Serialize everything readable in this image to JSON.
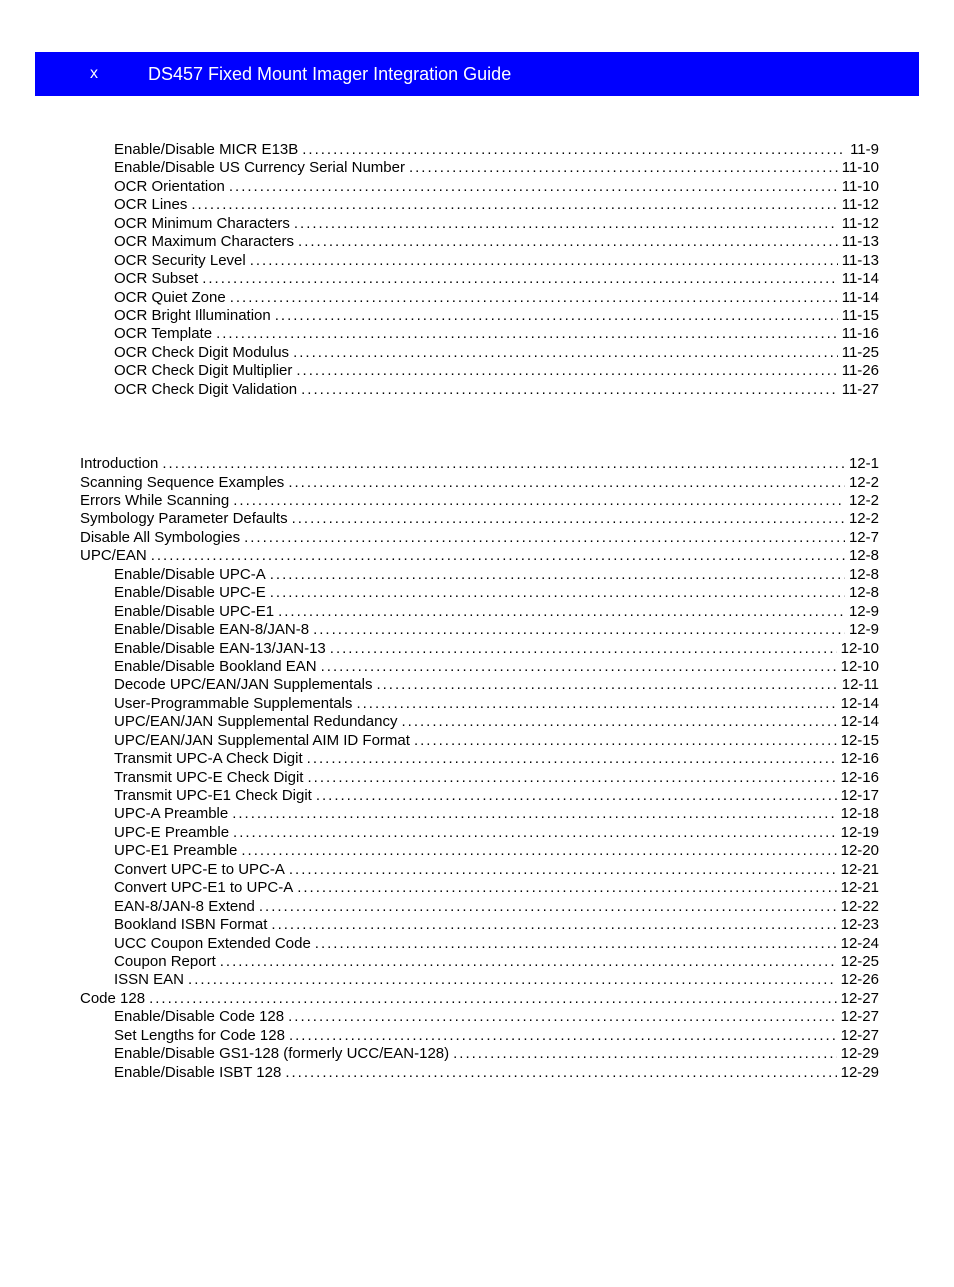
{
  "header": {
    "pageNumber": "x",
    "title": "DS457 Fixed Mount Imager Integration Guide"
  },
  "toc": {
    "section1": [
      {
        "label": "Enable/Disable MICR E13B",
        "page": "11-9",
        "indent": 1
      },
      {
        "label": "Enable/Disable US Currency Serial Number",
        "page": "11-10",
        "indent": 1
      },
      {
        "label": "OCR Orientation",
        "page": "11-10",
        "indent": 1
      },
      {
        "label": "OCR Lines",
        "page": "11-12",
        "indent": 1
      },
      {
        "label": "OCR Minimum Characters",
        "page": "11-12",
        "indent": 1
      },
      {
        "label": "OCR Maximum Characters",
        "page": "11-13",
        "indent": 1
      },
      {
        "label": "OCR Security Level",
        "page": "11-13",
        "indent": 1
      },
      {
        "label": "OCR Subset",
        "page": "11-14",
        "indent": 1
      },
      {
        "label": "OCR Quiet Zone",
        "page": "11-14",
        "indent": 1
      },
      {
        "label": "OCR Bright Illumination",
        "page": "11-15",
        "indent": 1
      },
      {
        "label": "OCR Template",
        "page": "11-16",
        "indent": 1
      },
      {
        "label": "OCR Check Digit Modulus",
        "page": "11-25",
        "indent": 1
      },
      {
        "label": "OCR Check Digit Multiplier",
        "page": "11-26",
        "indent": 1
      },
      {
        "label": "OCR Check Digit Validation",
        "page": "11-27",
        "indent": 1
      }
    ],
    "section2": [
      {
        "label": "Introduction",
        "page": "12-1",
        "indent": 0
      },
      {
        "label": "Scanning Sequence Examples",
        "page": "12-2",
        "indent": 0
      },
      {
        "label": "Errors While Scanning",
        "page": "12-2",
        "indent": 0
      },
      {
        "label": "Symbology Parameter Defaults",
        "page": "12-2",
        "indent": 0
      },
      {
        "label": "Disable All Symbologies",
        "page": "12-7",
        "indent": 0
      },
      {
        "label": "UPC/EAN",
        "page": "12-8",
        "indent": 0
      },
      {
        "label": "Enable/Disable UPC-A",
        "page": "12-8",
        "indent": 1
      },
      {
        "label": "Enable/Disable UPC-E",
        "page": "12-8",
        "indent": 1
      },
      {
        "label": "Enable/Disable UPC-E1",
        "page": "12-9",
        "indent": 1
      },
      {
        "label": "Enable/Disable EAN-8/JAN-8",
        "page": "12-9",
        "indent": 1
      },
      {
        "label": "Enable/Disable EAN-13/JAN-13",
        "page": "12-10",
        "indent": 1
      },
      {
        "label": "Enable/Disable Bookland EAN",
        "page": "12-10",
        "indent": 1
      },
      {
        "label": "Decode UPC/EAN/JAN Supplementals",
        "page": "12-11",
        "indent": 1
      },
      {
        "label": "User-Programmable Supplementals",
        "page": "12-14",
        "indent": 1
      },
      {
        "label": "UPC/EAN/JAN Supplemental Redundancy",
        "page": "12-14",
        "indent": 1
      },
      {
        "label": "UPC/EAN/JAN Supplemental AIM ID Format",
        "page": "12-15",
        "indent": 1
      },
      {
        "label": "Transmit UPC-A Check Digit",
        "page": "12-16",
        "indent": 1
      },
      {
        "label": "Transmit UPC-E Check Digit",
        "page": "12-16",
        "indent": 1
      },
      {
        "label": "Transmit UPC-E1 Check Digit",
        "page": "12-17",
        "indent": 1
      },
      {
        "label": "UPC-A Preamble",
        "page": "12-18",
        "indent": 1
      },
      {
        "label": "UPC-E Preamble",
        "page": "12-19",
        "indent": 1
      },
      {
        "label": "UPC-E1 Preamble",
        "page": "12-20",
        "indent": 1
      },
      {
        "label": "Convert UPC-E to UPC-A",
        "page": "12-21",
        "indent": 1
      },
      {
        "label": "Convert UPC-E1 to UPC-A",
        "page": "12-21",
        "indent": 1
      },
      {
        "label": "EAN-8/JAN-8 Extend",
        "page": "12-22",
        "indent": 1
      },
      {
        "label": "Bookland ISBN Format",
        "page": "12-23",
        "indent": 1
      },
      {
        "label": "UCC Coupon Extended Code",
        "page": "12-24",
        "indent": 1
      },
      {
        "label": "Coupon Report",
        "page": "12-25",
        "indent": 1
      },
      {
        "label": "ISSN EAN",
        "page": "12-26",
        "indent": 1
      },
      {
        "label": "Code 128",
        "page": "12-27",
        "indent": 0
      },
      {
        "label": "Enable/Disable Code 128",
        "page": "12-27",
        "indent": 1
      },
      {
        "label": "Set Lengths for Code 128",
        "page": "12-27",
        "indent": 1
      },
      {
        "label": "Enable/Disable GS1-128 (formerly UCC/EAN-128)",
        "page": "12-29",
        "indent": 1
      },
      {
        "label": "Enable/Disable ISBT 128",
        "page": "12-29",
        "indent": 1
      }
    ]
  },
  "colors": {
    "headerBg": "#0000ff",
    "headerText": "#ffffff",
    "bodyText": "#000000",
    "pageBg": "#ffffff"
  }
}
